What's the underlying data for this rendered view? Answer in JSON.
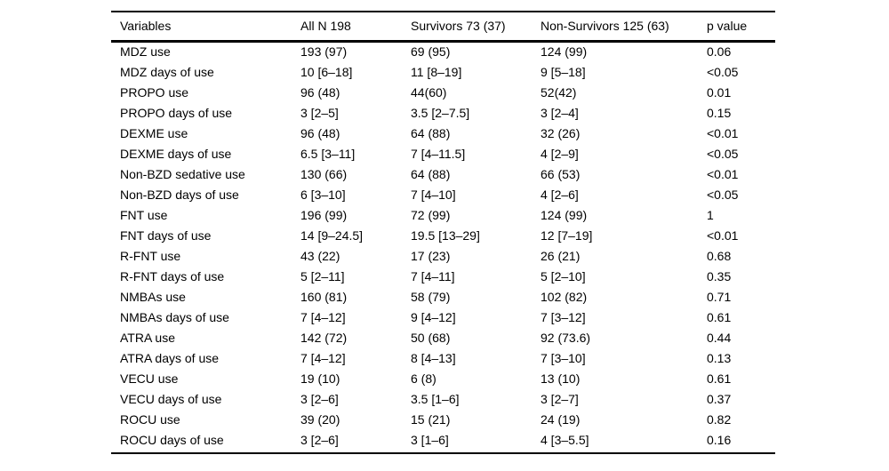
{
  "page": {
    "background_color": "#ffffff",
    "text_color": "#000000",
    "rule_color": "#000000"
  },
  "table": {
    "columns": [
      "Variables",
      "All N 198",
      "Survivors 73 (37)",
      "Non-Survivors 125 (63)",
      "p value"
    ],
    "rows": [
      [
        "MDZ use",
        "193 (97)",
        "69 (95)",
        "124 (99)",
        "0.06"
      ],
      [
        "MDZ days of use",
        "10 [6–18]",
        "11 [8–19]",
        "9 [5–18]",
        "<0.05"
      ],
      [
        "PROPO use",
        "96 (48)",
        "44(60)",
        "52(42)",
        "0.01"
      ],
      [
        "PROPO days of use",
        "3 [2–5]",
        "3.5 [2–7.5]",
        "3 [2–4]",
        "0.15"
      ],
      [
        "DEXME use",
        "96 (48)",
        "64 (88)",
        "32 (26)",
        "<0.01"
      ],
      [
        "DEXME days of use",
        "6.5 [3–11]",
        "7 [4–11.5]",
        "4 [2–9]",
        "<0.05"
      ],
      [
        "Non-BZD sedative use",
        "130 (66)",
        "64 (88)",
        "66 (53)",
        "<0.01"
      ],
      [
        "Non-BZD days of use",
        "6 [3–10]",
        "7 [4–10]",
        "4 [2–6]",
        "<0.05"
      ],
      [
        "FNT use",
        "196 (99)",
        "72 (99)",
        "124 (99)",
        "1"
      ],
      [
        "FNT days of use",
        "14 [9–24.5]",
        "19.5 [13–29]",
        "12 [7–19]",
        "<0.01"
      ],
      [
        "R-FNT use",
        "43 (22)",
        "17 (23)",
        "26 (21)",
        "0.68"
      ],
      [
        "R-FNT days of use",
        "5 [2–11]",
        "7 [4–11]",
        "5 [2–10]",
        "0.35"
      ],
      [
        "NMBAs use",
        "160 (81)",
        "58 (79)",
        "102 (82)",
        "0.71"
      ],
      [
        "NMBAs days of use",
        "7 [4–12]",
        "9 [4–12]",
        "7 [3–12]",
        "0.61"
      ],
      [
        "ATRA use",
        "142 (72)",
        "50 (68)",
        "92 (73.6)",
        "0.44"
      ],
      [
        "ATRA days of use",
        "7 [4–12]",
        "8 [4–13]",
        "7 [3–10]",
        "0.13"
      ],
      [
        "VECU use",
        "19 (10)",
        "6 (8)",
        "13 (10)",
        "0.61"
      ],
      [
        "VECU days of use",
        "3 [2–6]",
        "3.5 [1–6]",
        "3 [2–7]",
        "0.37"
      ],
      [
        "ROCU use",
        "39 (20)",
        "15 (21)",
        "24 (19)",
        "0.82"
      ],
      [
        "ROCU days of use",
        "3 [2–6]",
        "3 [1–6]",
        "4 [3–5.5]",
        "0.16"
      ]
    ]
  }
}
